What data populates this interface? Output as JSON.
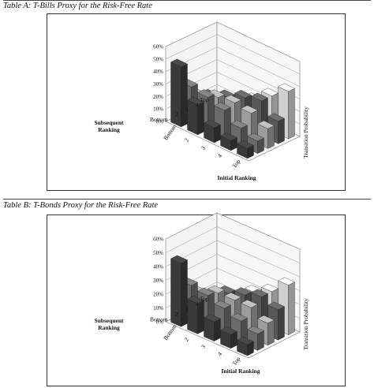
{
  "chart_data": [
    {
      "type": "bar3d",
      "panel_title": "Table A: T-Bills Proxy for the Risk-Free Rate",
      "xlabel": "Initial Ranking",
      "ylabel": "Subsequent Ranking",
      "zlabel": "Transition Probability",
      "x_categories": [
        "Bottom",
        "2",
        "3",
        "4",
        "Top"
      ],
      "y_categories": [
        "Bottom",
        "2",
        "3",
        "4",
        "Top"
      ],
      "z_ticks": [
        "0%",
        "10%",
        "20%",
        "30%",
        "40%",
        "50%",
        "60%"
      ],
      "zlim": [
        0,
        0.6
      ],
      "grid": true,
      "values": [
        [
          0.48,
          0.24,
          0.12,
          0.08,
          0.08
        ],
        [
          0.28,
          0.26,
          0.22,
          0.14,
          0.1
        ],
        [
          0.16,
          0.22,
          0.24,
          0.22,
          0.16
        ],
        [
          0.12,
          0.18,
          0.24,
          0.28,
          0.18
        ],
        [
          0.06,
          0.1,
          0.18,
          0.28,
          0.38
        ]
      ]
    },
    {
      "type": "bar3d",
      "panel_title": "Table B: T-Bonds Proxy for the Risk-Free Rate",
      "xlabel": "Initial Ranking",
      "ylabel": "Subsequent Ranking",
      "zlabel": "Transition Probability",
      "x_categories": [
        "Bottom",
        "2",
        "3",
        "4",
        "Top"
      ],
      "y_categories": [
        "Bottom",
        "2",
        "3",
        "4",
        "Top"
      ],
      "z_ticks": [
        "0%",
        "10%",
        "20%",
        "30%",
        "40%",
        "50%",
        "60%"
      ],
      "zlim": [
        0,
        0.6
      ],
      "grid": true,
      "values": [
        [
          0.46,
          0.22,
          0.14,
          0.1,
          0.08
        ],
        [
          0.26,
          0.24,
          0.2,
          0.16,
          0.12
        ],
        [
          0.16,
          0.22,
          0.22,
          0.22,
          0.16
        ],
        [
          0.1,
          0.18,
          0.22,
          0.26,
          0.22
        ],
        [
          0.04,
          0.1,
          0.2,
          0.26,
          0.36
        ]
      ]
    }
  ]
}
